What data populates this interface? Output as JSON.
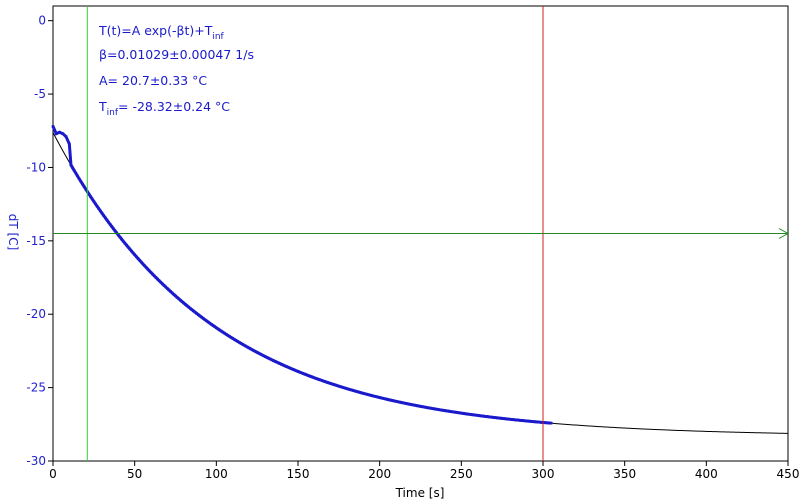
{
  "chart_data": {
    "type": "scatter",
    "xlabel": "Time [s]",
    "ylabel": "dT [C]",
    "xlim": [
      0,
      450
    ],
    "ylim": [
      -30,
      1
    ],
    "x_ticks": [
      0,
      50,
      100,
      150,
      200,
      250,
      300,
      350,
      400,
      450
    ],
    "y_ticks": [
      0,
      -5,
      -10,
      -15,
      -20,
      -25,
      -30
    ],
    "grid": false,
    "fit": {
      "model": "T(t)=A exp(-βt)+T_inf",
      "beta": 0.01029,
      "A": 20.7,
      "T_inf": -28.32,
      "x_range": [
        0,
        450
      ]
    },
    "data_x_range": [
      0,
      305
    ],
    "data_start_plateau": [
      {
        "x": 0,
        "y": -7.2
      },
      {
        "x": 2,
        "y": -7.7
      },
      {
        "x": 4,
        "y": -7.6
      },
      {
        "x": 6,
        "y": -7.7
      },
      {
        "x": 8,
        "y": -7.9
      },
      {
        "x": 10,
        "y": -8.4
      }
    ],
    "markers": {
      "vline_green_x": 21,
      "vline_red_x": 300,
      "hline_green_y": -14.5
    },
    "colors": {
      "data": "#1a1acc",
      "fit": "#000000",
      "vline_green": "#33cc33",
      "vline_red": "#cc2222",
      "hline_green": "#228822",
      "ytick_text": "#2222cc"
    }
  },
  "annotation": {
    "line1_main": "T(t)=A exp(-βt)+T",
    "line1_sub": "inf",
    "line2": "β=0.01029±0.00047 1/s",
    "line3": "A= 20.7±0.33 °C",
    "line4_main": "T",
    "line4_sub": "inf",
    "line4_rest": "= -28.32±0.24 °C"
  }
}
